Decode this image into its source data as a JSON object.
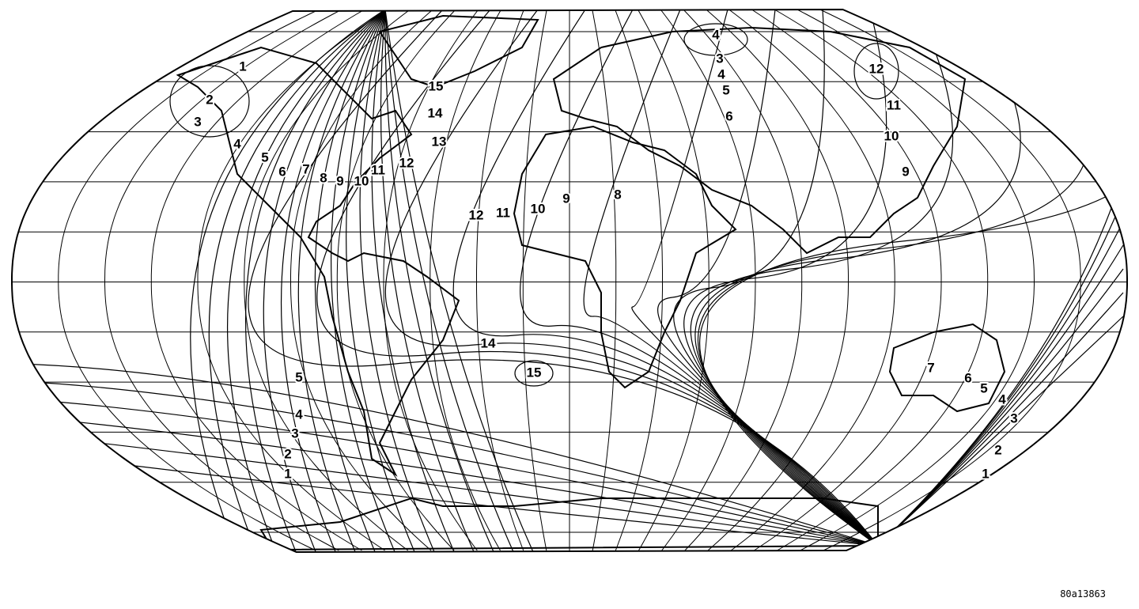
{
  "figure_id": "80a13863",
  "colors": {
    "line": "#000000",
    "background": "#ffffff"
  },
  "contour_labels": {
    "north_america": [
      "1",
      "2",
      "3",
      "4",
      "5",
      "6",
      "7",
      "8",
      "9",
      "10",
      "11",
      "12",
      "13",
      "14",
      "15"
    ],
    "africa": [
      "12",
      "11",
      "10",
      "9",
      "8"
    ],
    "russia": [
      "4",
      "3",
      "4",
      "5",
      "6"
    ],
    "east_asia": [
      "12",
      "11",
      "10",
      "9"
    ],
    "south_atlantic": [
      "14",
      "15"
    ],
    "south_pacific": [
      "5",
      "4",
      "3",
      "2",
      "1"
    ],
    "australia": [
      "7",
      "6",
      "5",
      "4",
      "3",
      "2",
      "1"
    ]
  }
}
